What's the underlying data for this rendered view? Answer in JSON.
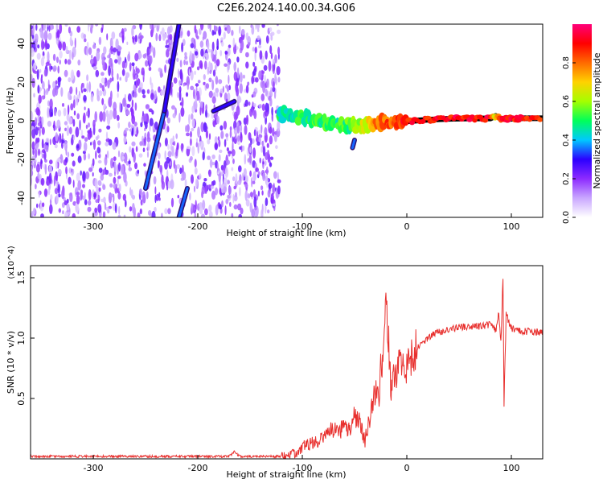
{
  "title": "C2E6.2024.140.00.34.G06",
  "chart_data": [
    {
      "type": "heatmap",
      "name": "spectrogram",
      "xlabel": "Height of straight line (km)",
      "ylabel": "Frequency (Hz)",
      "xlim": [
        -360,
        130
      ],
      "ylim": [
        -50,
        50
      ],
      "x_ticks": [
        -300,
        -200,
        -100,
        0,
        100
      ],
      "y_ticks": [
        -40,
        -20,
        0,
        20,
        40
      ],
      "grid": false,
      "colorbar": {
        "label": "Normalized spectral amplitude",
        "range": [
          0,
          1
        ],
        "ticks": [
          "0.0",
          "0.2",
          "0.4",
          "0.6",
          "0.8"
        ],
        "colors": [
          "#ffffff",
          "#c9a7ff",
          "#8d2bff",
          "#2b00ff",
          "#00c8ff",
          "#00ff5a",
          "#a4ff00",
          "#ffd200",
          "#ff6a00",
          "#ff0000",
          "#ff007a"
        ]
      },
      "noise_region_x": [
        -360,
        -122
      ],
      "carrier_track": {
        "x": [
          -122,
          -110,
          -100,
          -90,
          -80,
          -70,
          -60,
          -50,
          -40,
          -30,
          -20,
          -10,
          0,
          20,
          40,
          60,
          80,
          85,
          90,
          100,
          110,
          130
        ],
        "freq": [
          3.5,
          2,
          1.5,
          0.5,
          -0.5,
          -1,
          -2,
          -2.5,
          -2,
          -1.5,
          -0.5,
          -0.5,
          -0.3,
          0.5,
          1,
          1.2,
          1.2,
          2.5,
          1,
          1,
          1.3,
          1.3
        ],
        "amplitude": [
          0.45,
          0.45,
          0.5,
          0.5,
          0.5,
          0.5,
          0.5,
          0.55,
          0.65,
          0.75,
          0.8,
          0.85,
          0.9,
          0.88,
          0.9,
          0.92,
          0.9,
          0.6,
          0.9,
          0.9,
          0.9,
          0.9
        ]
      },
      "features": [
        {
          "label": "diagonal streak",
          "x": [
            -250,
            -232
          ],
          "freq": [
            -35,
            5
          ],
          "amplitude": 0.35
        },
        {
          "label": "diagonal streak",
          "x": [
            -232,
            -218
          ],
          "freq": [
            5,
            50
          ],
          "amplitude": 0.3
        },
        {
          "label": "diagonal streak",
          "x": [
            -218,
            -210
          ],
          "freq": [
            -50,
            -35
          ],
          "amplitude": 0.35
        },
        {
          "label": "blob",
          "x": [
            -185,
            -165
          ],
          "freq": [
            5,
            10
          ],
          "amplitude": 0.3
        },
        {
          "label": "blob",
          "x": [
            -52,
            -50
          ],
          "freq": [
            -14,
            -10
          ],
          "amplitude": 0.35
        }
      ]
    },
    {
      "type": "line",
      "name": "snr",
      "xlabel": "Height of straight line (km)",
      "ylabel": "SNR (10 * v/v)",
      "y_multiplier": "(x10^4)",
      "xlim": [
        -360,
        130
      ],
      "ylim": [
        0,
        1.6
      ],
      "x_ticks": [
        -300,
        -200,
        -100,
        0,
        100
      ],
      "y_ticks": [
        "0.5",
        "1.0",
        "1.5"
      ],
      "grid": false,
      "series": [
        {
          "color": "#e8302e",
          "x": [
            -360,
            -300,
            -200,
            -170,
            -165,
            -160,
            -120,
            -105,
            -100,
            -90,
            -80,
            -70,
            -65,
            -60,
            -55,
            -50,
            -45,
            -40,
            -35,
            -30,
            -27,
            -25,
            -22,
            -20,
            -15,
            -10,
            -5,
            0,
            5,
            10,
            15,
            20,
            25,
            30,
            40,
            50,
            60,
            70,
            80,
            85,
            88,
            90,
            92,
            93,
            95,
            100,
            110,
            120,
            130
          ],
          "y": [
            0.02,
            0.02,
            0.02,
            0.02,
            0.06,
            0.02,
            0.02,
            0.05,
            0.1,
            0.13,
            0.18,
            0.25,
            0.2,
            0.3,
            0.25,
            0.35,
            0.3,
            0.15,
            0.35,
            0.55,
            0.5,
            0.72,
            0.85,
            1.3,
            0.6,
            0.7,
            0.8,
            0.75,
            0.85,
            0.92,
            0.95,
            1.0,
            1.03,
            1.05,
            1.07,
            1.09,
            1.1,
            1.1,
            1.11,
            1.06,
            1.2,
            0.95,
            1.5,
            0.45,
            1.2,
            1.08,
            1.06,
            1.05,
            1.05
          ]
        }
      ]
    }
  ]
}
